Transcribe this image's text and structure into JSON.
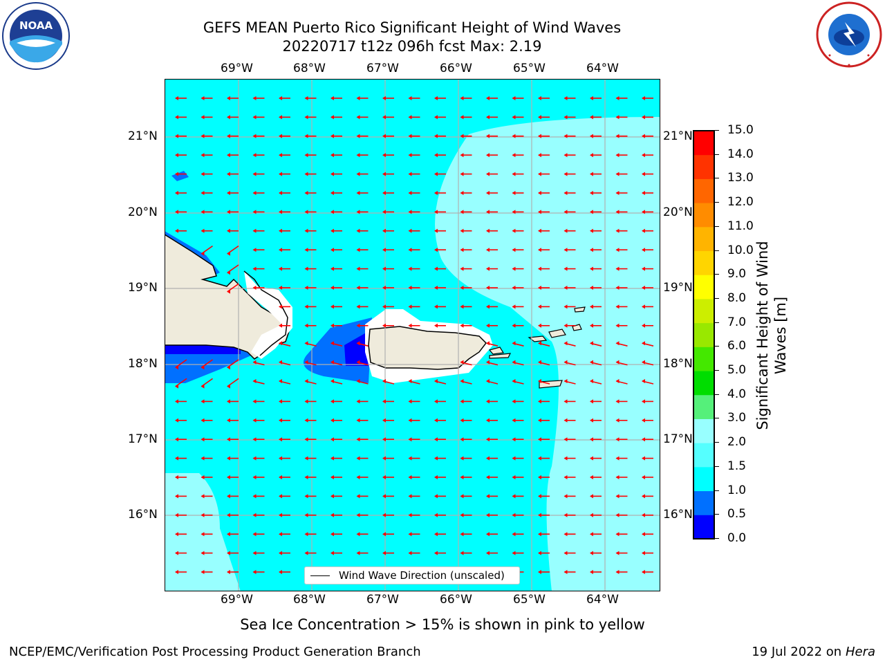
{
  "header": {
    "title_line1": "GEFS MEAN Puerto Rico Significant Height of Wind Waves",
    "title_line2": "20220717 t12z 096h fcst   Max: 2.19"
  },
  "logos": {
    "noaa": {
      "icon": "noaa-logo-icon",
      "text": "NOAA"
    },
    "nws": {
      "icon": "nws-logo-icon"
    }
  },
  "map": {
    "lon_labels": [
      "69°W",
      "68°W",
      "67°W",
      "66°W",
      "65°W",
      "64°W"
    ],
    "lat_labels": [
      "21°N",
      "20°N",
      "19°N",
      "18°N",
      "17°N",
      "16°N"
    ],
    "lon_range": [
      -70.0,
      -63.25
    ],
    "lat_range": [
      15.0,
      21.75
    ],
    "gridlines": true,
    "legend": {
      "label": "Wind Wave Direction (unscaled)",
      "placement": "bottom-center"
    },
    "arrow_direction": "westward (east to west)",
    "colors": {
      "ocean_1_5_2": "#00ffff",
      "ocean_2_3": "#98ffff",
      "land": "#efebdc",
      "arrows": "#ff0000",
      "grid": "#b0b0b0"
    }
  },
  "colorbar": {
    "label": "Significant Height of Wind Waves [m]",
    "ticks": [
      "0.0",
      "0.5",
      "1.0",
      "1.5",
      "2.0",
      "3.0",
      "4.0",
      "5.0",
      "6.0",
      "7.0",
      "8.0",
      "9.0",
      "10.0",
      "11.0",
      "12.0",
      "13.0",
      "14.0",
      "15.0"
    ],
    "colors": [
      "#0000ff",
      "#0070ff",
      "#00ffff",
      "#55ffff",
      "#98ffff",
      "#55f07a",
      "#00dd00",
      "#44e800",
      "#99e800",
      "#ccee00",
      "#ffff00",
      "#ffd500",
      "#ffb400",
      "#ff8c00",
      "#ff6600",
      "#ff3300",
      "#ff0000"
    ]
  },
  "footer": {
    "note": "Sea Ice Concentration > 15% is shown in pink to yellow",
    "left": "NCEP/EMC/Verification Post Processing Product Generation Branch",
    "right_date": "19 Jul 2022 on ",
    "right_machine": "Hera"
  }
}
